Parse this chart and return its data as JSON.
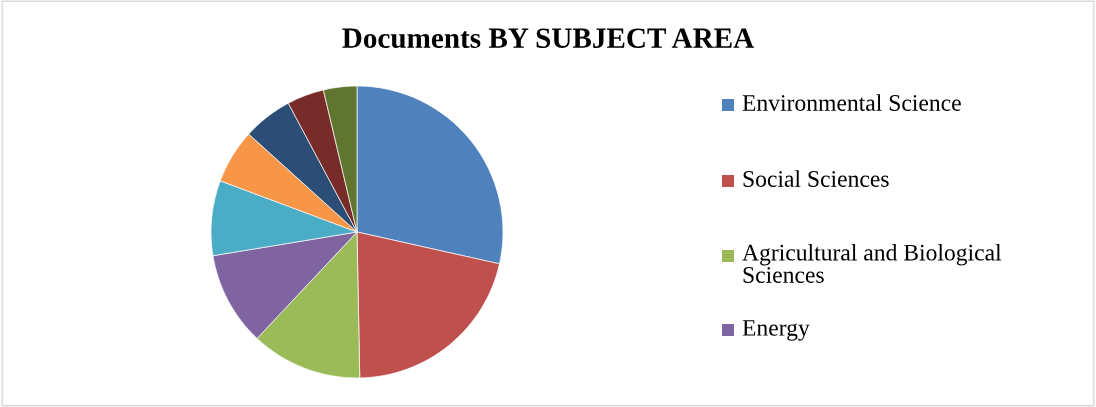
{
  "chart_data": {
    "type": "pie",
    "title": "Documents BY SUBJECT AREA",
    "categories": [
      "Environmental Science",
      "Social Sciences",
      "Agricultural and Biological\nSciences",
      "Energy",
      null,
      null,
      null,
      null,
      null
    ],
    "values": [
      28.5,
      21.2,
      12.3,
      10.4,
      8.3,
      6.0,
      5.5,
      4.1,
      3.7
    ],
    "colors": [
      "#4f81bd",
      "#c0504d",
      "#9bbb59",
      "#8064a2",
      "#4bacc6",
      "#f79646",
      "#2c4d75",
      "#772c2a",
      "#5f7530"
    ],
    "legend": "right"
  }
}
